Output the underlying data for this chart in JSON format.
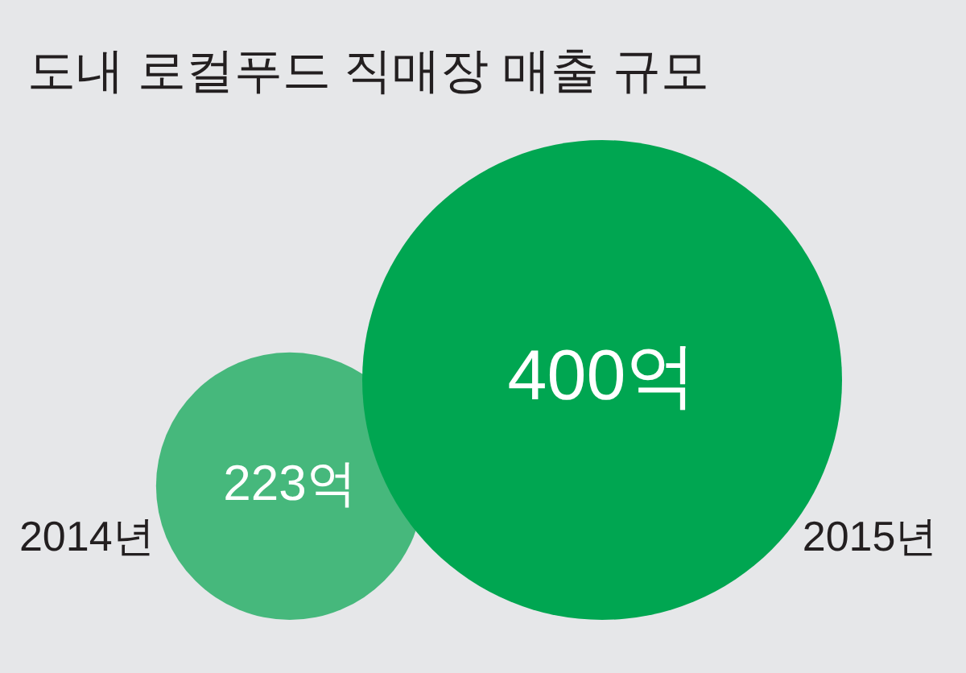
{
  "chart_data": {
    "type": "other",
    "title": "도내 로컬푸드 직매장 매출 규모",
    "categories": [
      "2014년",
      "2015년"
    ],
    "values": [
      223,
      400
    ],
    "value_labels": [
      "223억",
      "400억"
    ],
    "colors": [
      "#46b87c",
      "#00a651"
    ]
  }
}
